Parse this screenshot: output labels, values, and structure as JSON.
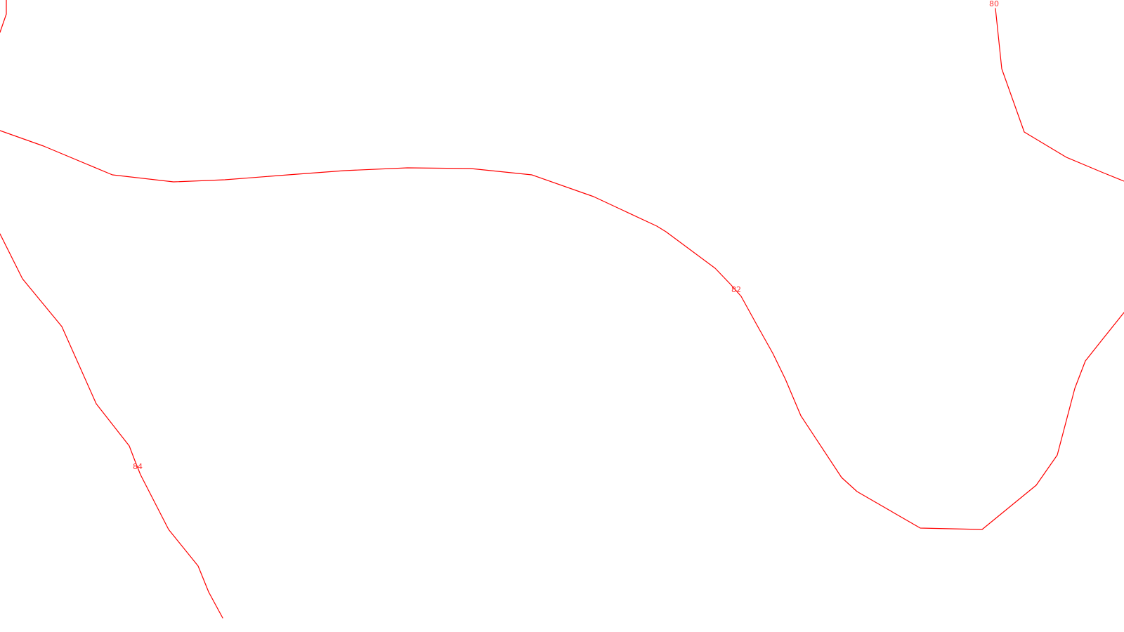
{
  "map": {
    "line_color": "#ff0000",
    "label_color": "#ff3333",
    "background_color": "#ffffff",
    "contours": [
      {
        "id": "contour-80-top",
        "label": "80"
      },
      {
        "id": "contour-82-main",
        "label": "82"
      },
      {
        "id": "contour-84-left",
        "label": "84"
      },
      {
        "id": "contour-topleft-corner",
        "label": ""
      }
    ]
  }
}
